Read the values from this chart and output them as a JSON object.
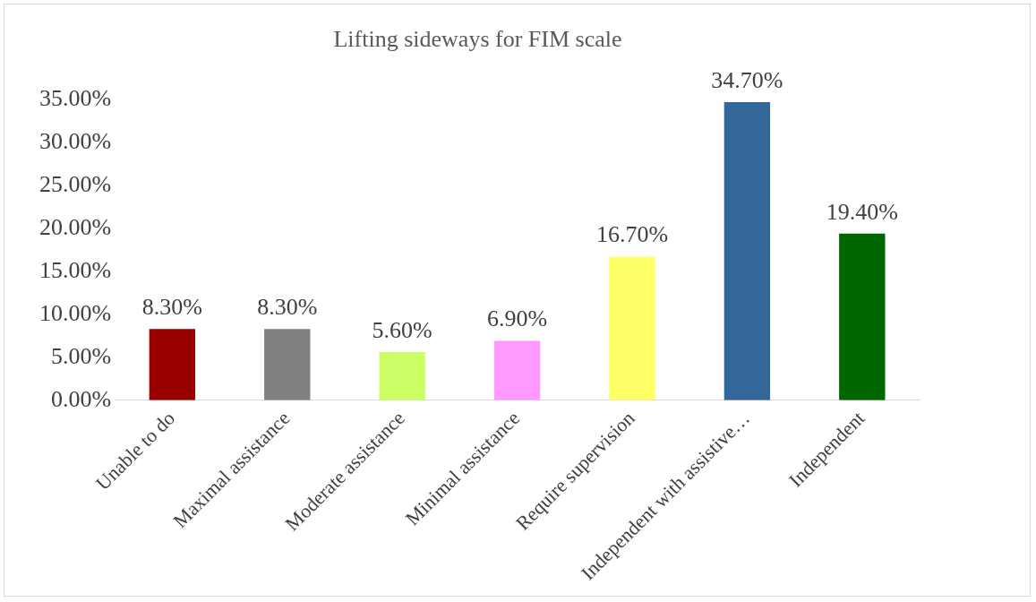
{
  "chart_data": {
    "type": "bar",
    "title": "Lifting sideways for FIM scale",
    "categories": [
      "Unable to do",
      "Maximal assistance",
      "Moderate assistance",
      "Minimal assistance",
      "Require supervision",
      "Independent with assistive…",
      "Independent"
    ],
    "values": [
      8.3,
      8.3,
      5.6,
      6.9,
      16.7,
      34.7,
      19.4
    ],
    "value_labels": [
      "8.30%",
      "8.30%",
      "5.60%",
      "6.90%",
      "16.70%",
      "34.70%",
      "19.40%"
    ],
    "colors": [
      "#990000",
      "#808080",
      "#ccff66",
      "#ff99ff",
      "#ffff66",
      "#336699",
      "#006600"
    ],
    "ylim": [
      0,
      35
    ],
    "yticks": [
      {
        "value": 0,
        "label": "0.00%"
      },
      {
        "value": 5,
        "label": "5.00%"
      },
      {
        "value": 10,
        "label": "10.00%"
      },
      {
        "value": 15,
        "label": "15.00%"
      },
      {
        "value": 20,
        "label": "20.00%"
      },
      {
        "value": 25,
        "label": "25.00%"
      },
      {
        "value": 30,
        "label": "30.00%"
      },
      {
        "value": 35,
        "label": "35.00%"
      }
    ]
  }
}
